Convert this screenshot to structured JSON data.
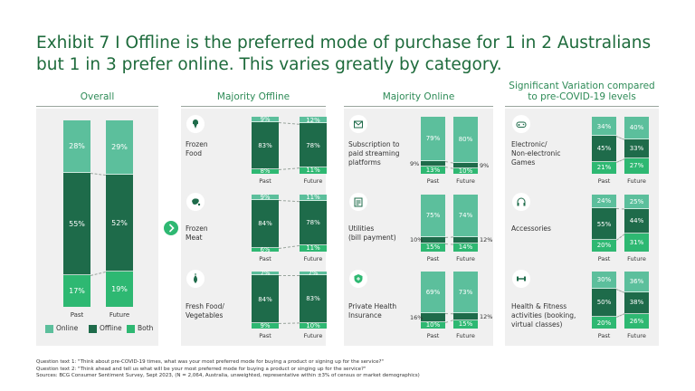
{
  "title_line1": "Exhibit 7 I Offline is the preferred mode of purchase for 1 in 2 Australians",
  "title_line2": "but 1 in 3 prefer online. This varies greatly by category.",
  "sections": {
    "overall": "Overall",
    "majority_offline": "Majority Offline",
    "majority_online": "Majority Online",
    "variation_line1": "Significant Variation compared",
    "variation_line2": "to pre-COVID-19 levels"
  },
  "colors": {
    "online": "#5cbf9c",
    "offline": "#1e6b4a",
    "both": "#2eb872",
    "panel": "#f0f0f0",
    "title": "#1e6b3c"
  },
  "legend": {
    "online": "Online",
    "offline": "Offline",
    "both": "Both"
  },
  "x_labels": {
    "past": "Past",
    "future": "Future"
  },
  "footnotes": [
    "Question text 1: \"Think about pre-COVID-19 times, what was your most preferred mode for buying a product or signing up for the service?\"",
    "Question text 2: \"Think ahead and tell us what will be your most preferred mode for buying a product or singing up for the service?\"",
    "Sources: BCG Consumer Sentiment Survey, Sept 2023, (N = 2,064, Australia, unweighted, representative within ±3% of census or market demographics)"
  ],
  "chart_data": [
    {
      "type": "bar",
      "stacked": true,
      "panel": "Overall",
      "categories": [
        "Past",
        "Future"
      ],
      "series": [
        {
          "name": "Online",
          "values": [
            28,
            29
          ]
        },
        {
          "name": "Offline",
          "values": [
            55,
            52
          ]
        },
        {
          "name": "Both",
          "values": [
            17,
            19
          ]
        }
      ]
    },
    {
      "type": "bar",
      "stacked": true,
      "panel": "Majority Offline",
      "label": "Frozen Food",
      "icon": "ice-cream-icon",
      "categories": [
        "Past",
        "Future"
      ],
      "series": [
        {
          "name": "Online",
          "values": [
            9,
            12
          ]
        },
        {
          "name": "Offline",
          "values": [
            83,
            78
          ]
        },
        {
          "name": "Both",
          "values": [
            8,
            11
          ]
        }
      ]
    },
    {
      "type": "bar",
      "stacked": true,
      "panel": "Majority Offline",
      "label": "Frozen Meat",
      "icon": "meat-icon",
      "categories": [
        "Past",
        "Future"
      ],
      "series": [
        {
          "name": "Online",
          "values": [
            9,
            11
          ]
        },
        {
          "name": "Offline",
          "values": [
            84,
            78
          ]
        },
        {
          "name": "Both",
          "values": [
            6,
            11
          ]
        }
      ]
    },
    {
      "type": "bar",
      "stacked": true,
      "panel": "Majority Offline",
      "label": "Fresh Food/ Vegetables",
      "icon": "vegetable-icon",
      "categories": [
        "Past",
        "Future"
      ],
      "series": [
        {
          "name": "Online",
          "values": [
            7,
            7
          ]
        },
        {
          "name": "Offline",
          "values": [
            84,
            83
          ]
        },
        {
          "name": "Both",
          "values": [
            9,
            10
          ]
        }
      ]
    },
    {
      "type": "bar",
      "stacked": true,
      "panel": "Majority Online",
      "label": "Subscription to paid streaming platforms",
      "icon": "envelope-icon",
      "categories": [
        "Past",
        "Future"
      ],
      "series": [
        {
          "name": "Online",
          "values": [
            79,
            80
          ]
        },
        {
          "name": "Offline",
          "values": [
            9,
            9
          ]
        },
        {
          "name": "Both",
          "values": [
            13,
            10
          ]
        }
      ]
    },
    {
      "type": "bar",
      "stacked": true,
      "panel": "Majority Online",
      "label": "Utilities (bill payment)",
      "icon": "bill-icon",
      "categories": [
        "Past",
        "Future"
      ],
      "series": [
        {
          "name": "Online",
          "values": [
            75,
            74
          ]
        },
        {
          "name": "Offline",
          "values": [
            10,
            12
          ]
        },
        {
          "name": "Both",
          "values": [
            15,
            14
          ]
        }
      ]
    },
    {
      "type": "bar",
      "stacked": true,
      "panel": "Majority Online",
      "label": "Private Health Insurance",
      "icon": "shield-icon",
      "categories": [
        "Past",
        "Future"
      ],
      "series": [
        {
          "name": "Online",
          "values": [
            69,
            73
          ]
        },
        {
          "name": "Offline",
          "values": [
            16,
            12
          ]
        },
        {
          "name": "Both",
          "values": [
            10,
            15
          ]
        }
      ]
    },
    {
      "type": "bar",
      "stacked": true,
      "panel": "Significant Variation compared to pre-COVID-19 levels",
      "label": "Electronic/ Non-electronic Games",
      "icon": "gamepad-icon",
      "categories": [
        "Past",
        "Future"
      ],
      "series": [
        {
          "name": "Online",
          "values": [
            34,
            40
          ]
        },
        {
          "name": "Offline",
          "values": [
            45,
            33
          ]
        },
        {
          "name": "Both",
          "values": [
            21,
            27
          ]
        }
      ]
    },
    {
      "type": "bar",
      "stacked": true,
      "panel": "Significant Variation compared to pre-COVID-19 levels",
      "label": "Accessories",
      "icon": "headphones-icon",
      "categories": [
        "Past",
        "Future"
      ],
      "series": [
        {
          "name": "Online",
          "values": [
            24,
            25
          ]
        },
        {
          "name": "Offline",
          "values": [
            55,
            44
          ]
        },
        {
          "name": "Both",
          "values": [
            20,
            31
          ]
        }
      ]
    },
    {
      "type": "bar",
      "stacked": true,
      "panel": "Significant Variation compared to pre-COVID-19 levels",
      "label": "Health & Fitness activities (booking, virtual classes)",
      "icon": "dumbbell-icon",
      "categories": [
        "Past",
        "Future"
      ],
      "series": [
        {
          "name": "Online",
          "values": [
            30,
            36
          ]
        },
        {
          "name": "Offline",
          "values": [
            50,
            38
          ]
        },
        {
          "name": "Both",
          "values": [
            20,
            26
          ]
        }
      ]
    }
  ]
}
